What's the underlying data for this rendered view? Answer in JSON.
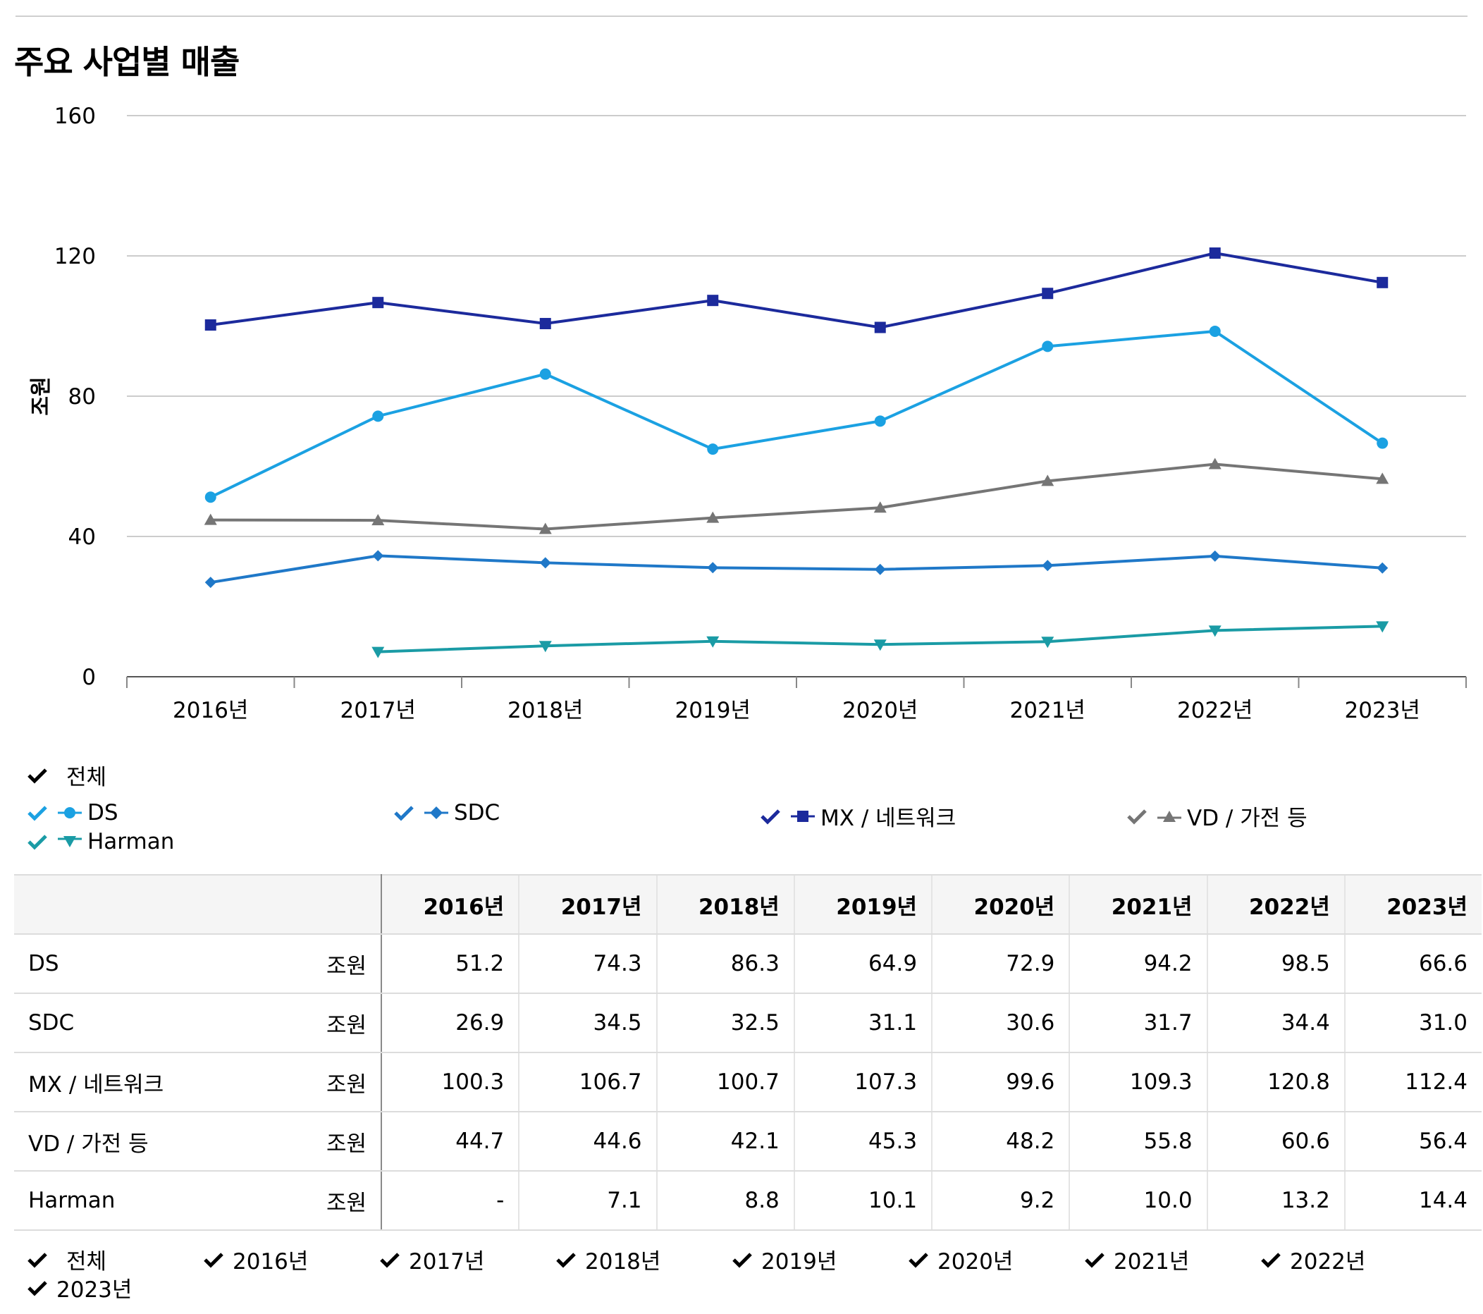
{
  "title": "주요 사업별 매출",
  "chart_data": {
    "type": "line",
    "ylabel": "조원",
    "ylim": [
      0,
      160
    ],
    "yticks": [
      0,
      40,
      80,
      120,
      160
    ],
    "categories": [
      "2016년",
      "2017년",
      "2018년",
      "2019년",
      "2020년",
      "2021년",
      "2022년",
      "2023년"
    ],
    "series": [
      {
        "name": "DS",
        "marker": "circle",
        "color": "#1ba1e2",
        "values": [
          51.2,
          74.3,
          86.3,
          64.9,
          72.9,
          94.2,
          98.5,
          66.6
        ]
      },
      {
        "name": "SDC",
        "marker": "diamond",
        "color": "#1f78c8",
        "values": [
          26.9,
          34.5,
          32.5,
          31.1,
          30.6,
          31.7,
          34.4,
          31.0
        ]
      },
      {
        "name": "MX / 네트워크",
        "marker": "square",
        "color": "#1c2a9c",
        "values": [
          100.3,
          106.7,
          100.7,
          107.3,
          99.6,
          109.3,
          120.8,
          112.4
        ]
      },
      {
        "name": "VD / 가전 등",
        "marker": "triangle",
        "color": "#757575",
        "values": [
          44.7,
          44.6,
          42.1,
          45.3,
          48.2,
          55.8,
          60.6,
          56.4
        ]
      },
      {
        "name": "Harman",
        "marker": "triangle-down",
        "color": "#1a9ba5",
        "values": [
          null,
          7.1,
          8.8,
          10.1,
          9.2,
          10.0,
          13.2,
          14.4
        ]
      }
    ]
  },
  "legend": {
    "all_label": "전체",
    "items": [
      "DS",
      "SDC",
      "MX / 네트워크",
      "VD / 가전 등",
      "Harman"
    ]
  },
  "table": {
    "years": [
      "2016년",
      "2017년",
      "2018년",
      "2019년",
      "2020년",
      "2021년",
      "2022년",
      "2023년"
    ],
    "rows": [
      {
        "name": "DS",
        "unit": "조원",
        "values": [
          "51.2",
          "74.3",
          "86.3",
          "64.9",
          "72.9",
          "94.2",
          "98.5",
          "66.6"
        ]
      },
      {
        "name": "SDC",
        "unit": "조원",
        "values": [
          "26.9",
          "34.5",
          "32.5",
          "31.1",
          "30.6",
          "31.7",
          "34.4",
          "31.0"
        ]
      },
      {
        "name": "MX / 네트워크",
        "unit": "조원",
        "values": [
          "100.3",
          "106.7",
          "100.7",
          "107.3",
          "99.6",
          "109.3",
          "120.8",
          "112.4"
        ]
      },
      {
        "name": "VD / 가전 등",
        "unit": "조원",
        "values": [
          "44.7",
          "44.6",
          "42.1",
          "45.3",
          "48.2",
          "55.8",
          "60.6",
          "56.4"
        ]
      },
      {
        "name": "Harman",
        "unit": "조원",
        "values": [
          "-",
          "7.1",
          "8.8",
          "10.1",
          "9.2",
          "10.0",
          "13.2",
          "14.4"
        ]
      }
    ]
  },
  "column_filters": {
    "all_label": "전체",
    "years": [
      "2016년",
      "2017년",
      "2018년",
      "2019년",
      "2020년",
      "2021년",
      "2022년",
      "2023년"
    ]
  }
}
